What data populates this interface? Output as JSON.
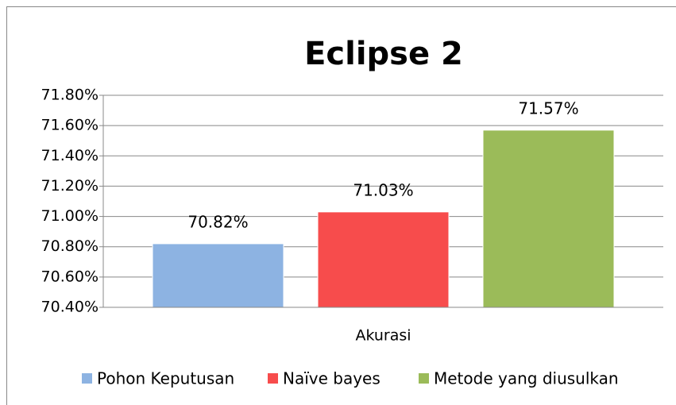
{
  "chart_data": {
    "type": "bar",
    "title": "Eclipse 2",
    "categories": [
      "Akurasi"
    ],
    "series": [
      {
        "name": "Pohon Keputusan",
        "color": "#8db3e2",
        "values": [
          70.82
        ],
        "value_labels": [
          "70.82%"
        ]
      },
      {
        "name": "Naïve bayes",
        "color": "#f74c4c",
        "values": [
          71.03
        ],
        "value_labels": [
          "71.03%"
        ]
      },
      {
        "name": "Metode yang diusulkan",
        "color": "#9bbb59",
        "values": [
          71.57
        ],
        "value_labels": [
          "71.57%"
        ]
      }
    ],
    "ylim": [
      70.4,
      71.8
    ],
    "yticks": [
      {
        "value": 70.4,
        "label": "70.40%"
      },
      {
        "value": 70.6,
        "label": "70.60%"
      },
      {
        "value": 70.8,
        "label": "70.80%"
      },
      {
        "value": 71.0,
        "label": "71.00%"
      },
      {
        "value": 71.2,
        "label": "71.20%"
      },
      {
        "value": 71.4,
        "label": "71.40%"
      },
      {
        "value": 71.6,
        "label": "71.60%"
      },
      {
        "value": 71.8,
        "label": "71.80%"
      }
    ],
    "grid": true,
    "legend": "bottom"
  }
}
